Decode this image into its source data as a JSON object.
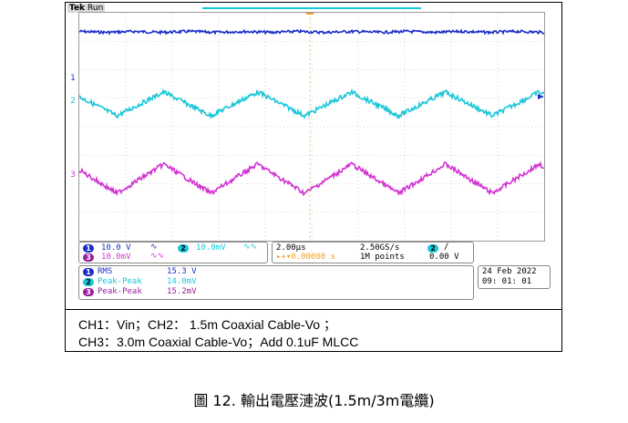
{
  "scope": {
    "brand": "Tek",
    "state": "Run",
    "markers": [
      "1",
      "2",
      "3"
    ],
    "channels": [
      {
        "id": "1",
        "scale": "10.0 V",
        "coupling_icon": "bandwidth-limit-icon",
        "color": "#1b2fc8"
      },
      {
        "id": "2",
        "scale": "10.0mV",
        "coupling_icon": "bandwidth-limit-icon",
        "color": "#19c7d9"
      },
      {
        "id": "3",
        "scale": "10.0mV",
        "coupling_icon": "bandwidth-limit-icon",
        "color": "#d233d2"
      }
    ],
    "horizontal": {
      "timebase": "2.00µs",
      "sample_rate": "2.50GS/s",
      "trigger_pos": "▸+▾0.00000 s",
      "record": "1M points"
    },
    "trigger": {
      "channel": "2",
      "slope_icon": "rising-edge-icon",
      "level": "0.00 V"
    },
    "measurements": [
      {
        "channel": "1",
        "label": "RMS",
        "value": "15.3 V",
        "color": "#1b2fc8"
      },
      {
        "channel": "2",
        "label": "Peak-Peak",
        "value": "14.0mV",
        "color": "#19c7d9"
      },
      {
        "channel": "3",
        "label": "Peak-Peak",
        "value": "15.2mV",
        "color": "#9a1f9a"
      }
    ],
    "date": "24 Feb      2022",
    "time": "09: 01: 01"
  },
  "caption": {
    "line1": "CH1：Vin；CH2： 1.5m Coaxial Cable-Vo ；",
    "line2": "CH3：3.0m Coaxial Cable-Vo；Add 0.1uF MLCC"
  },
  "figure_caption": "圖 12. 輸出電壓漣波(1.5m/3m電纜)"
}
